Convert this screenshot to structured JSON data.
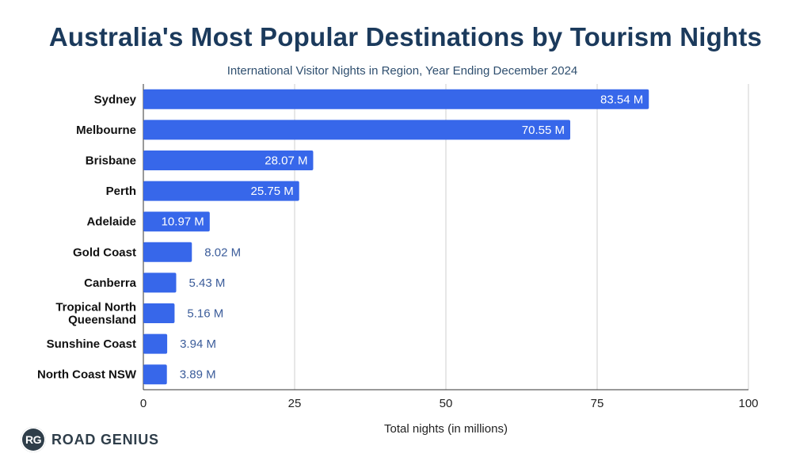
{
  "chart_data": {
    "type": "bar",
    "orientation": "horizontal",
    "title": "Australia's Most Popular Destinations by Tourism Nights",
    "subtitle": "International Visitor Nights in Region, Year Ending December 2024",
    "xlabel": "Total nights (in millions)",
    "ylabel": "",
    "xlim": [
      0,
      100
    ],
    "xticks": [
      0,
      25,
      50,
      75,
      100
    ],
    "grid": true,
    "bar_color": "#3767ea",
    "categories": [
      [
        "Sydney"
      ],
      [
        "Melbourne"
      ],
      [
        "Brisbane"
      ],
      [
        "Perth"
      ],
      [
        "Adelaide"
      ],
      [
        "Gold Coast"
      ],
      [
        "Canberra"
      ],
      [
        "Tropical North",
        "Queensland"
      ],
      [
        "Sunshine Coast"
      ],
      [
        "North Coast NSW"
      ]
    ],
    "values": [
      83.54,
      70.55,
      28.07,
      25.75,
      10.97,
      8.02,
      5.43,
      5.16,
      3.94,
      3.89
    ],
    "data_labels": [
      "83.54 M",
      "70.55 M",
      "28.07 M",
      "25.75 M",
      "10.97 M",
      "8.02 M",
      "5.43 M",
      "5.16 M",
      "3.94 M",
      "3.89 M"
    ]
  },
  "branding": {
    "logo_mark": "RG",
    "logo_text": "ROAD GENIUS",
    "logo_color": "#2f3e4a"
  }
}
